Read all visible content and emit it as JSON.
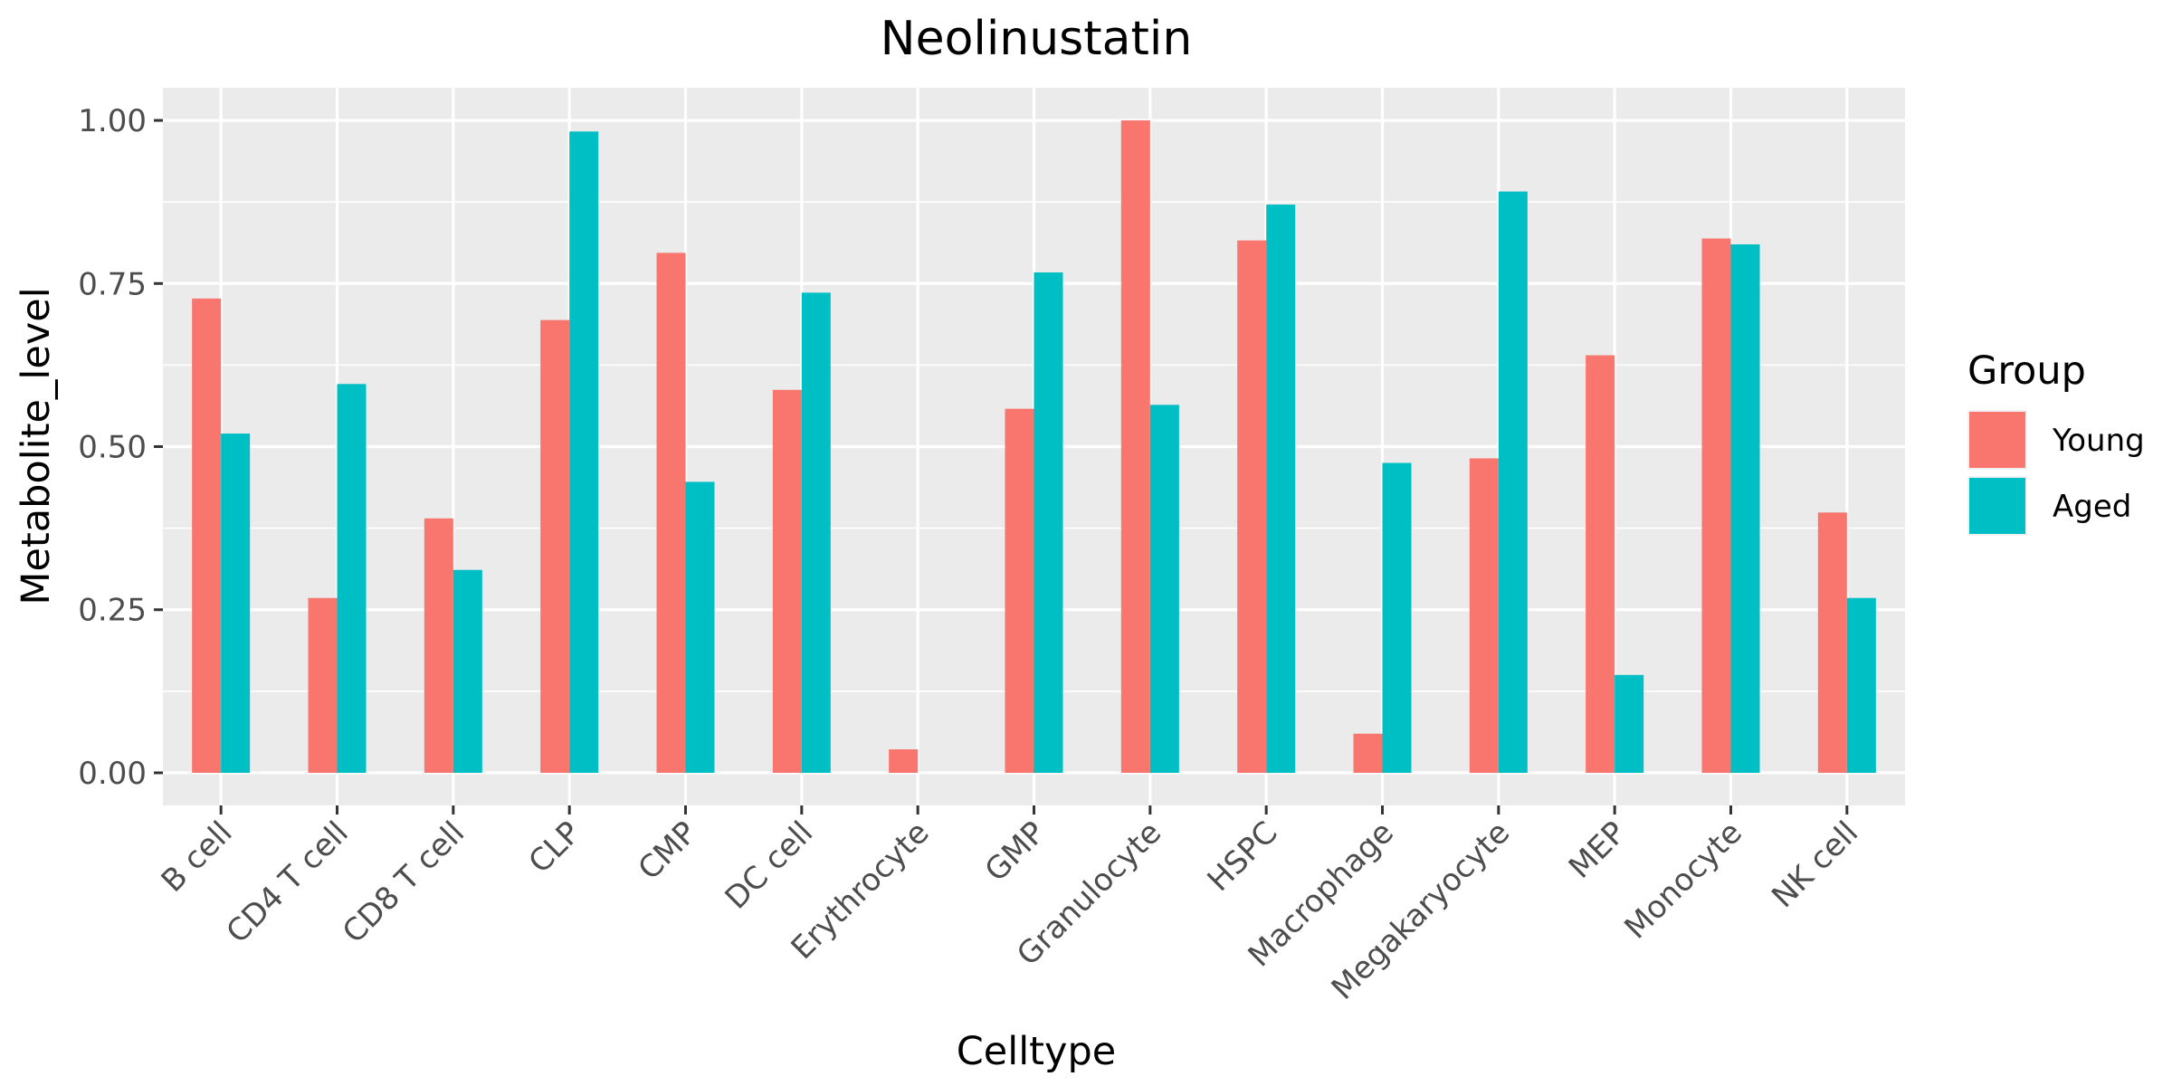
{
  "chart_data": {
    "type": "bar",
    "title": "Neolinustatin",
    "xlabel": "Celltype",
    "ylabel": "Metabolite_level",
    "ylim": [
      -0.05,
      1.05
    ],
    "yticks": [
      "0.00",
      "0.25",
      "0.50",
      "0.75",
      "1.00"
    ],
    "grid": true,
    "legend_title": "Group",
    "legend_position": "right",
    "categories": [
      "B cell",
      "CD4 T cell",
      "CD8 T cell",
      "CLP",
      "CMP",
      "DC cell",
      "Erythrocyte",
      "GMP",
      "Granulocyte",
      "HSPC",
      "Macrophage",
      "Megakaryocyte",
      "MEP",
      "Monocyte",
      "NK cell"
    ],
    "series": [
      {
        "name": "Young",
        "color": "#F8766D",
        "values": [
          0.727,
          0.268,
          0.39,
          0.694,
          0.797,
          0.587,
          0.036,
          0.558,
          1.0,
          0.816,
          0.06,
          0.482,
          0.64,
          0.819,
          0.399
        ]
      },
      {
        "name": "Aged",
        "color": "#00BFC4",
        "values": [
          0.52,
          0.596,
          0.311,
          0.983,
          0.446,
          0.736,
          0.0,
          0.767,
          0.564,
          0.871,
          0.475,
          0.891,
          0.15,
          0.81,
          0.268
        ]
      }
    ]
  }
}
